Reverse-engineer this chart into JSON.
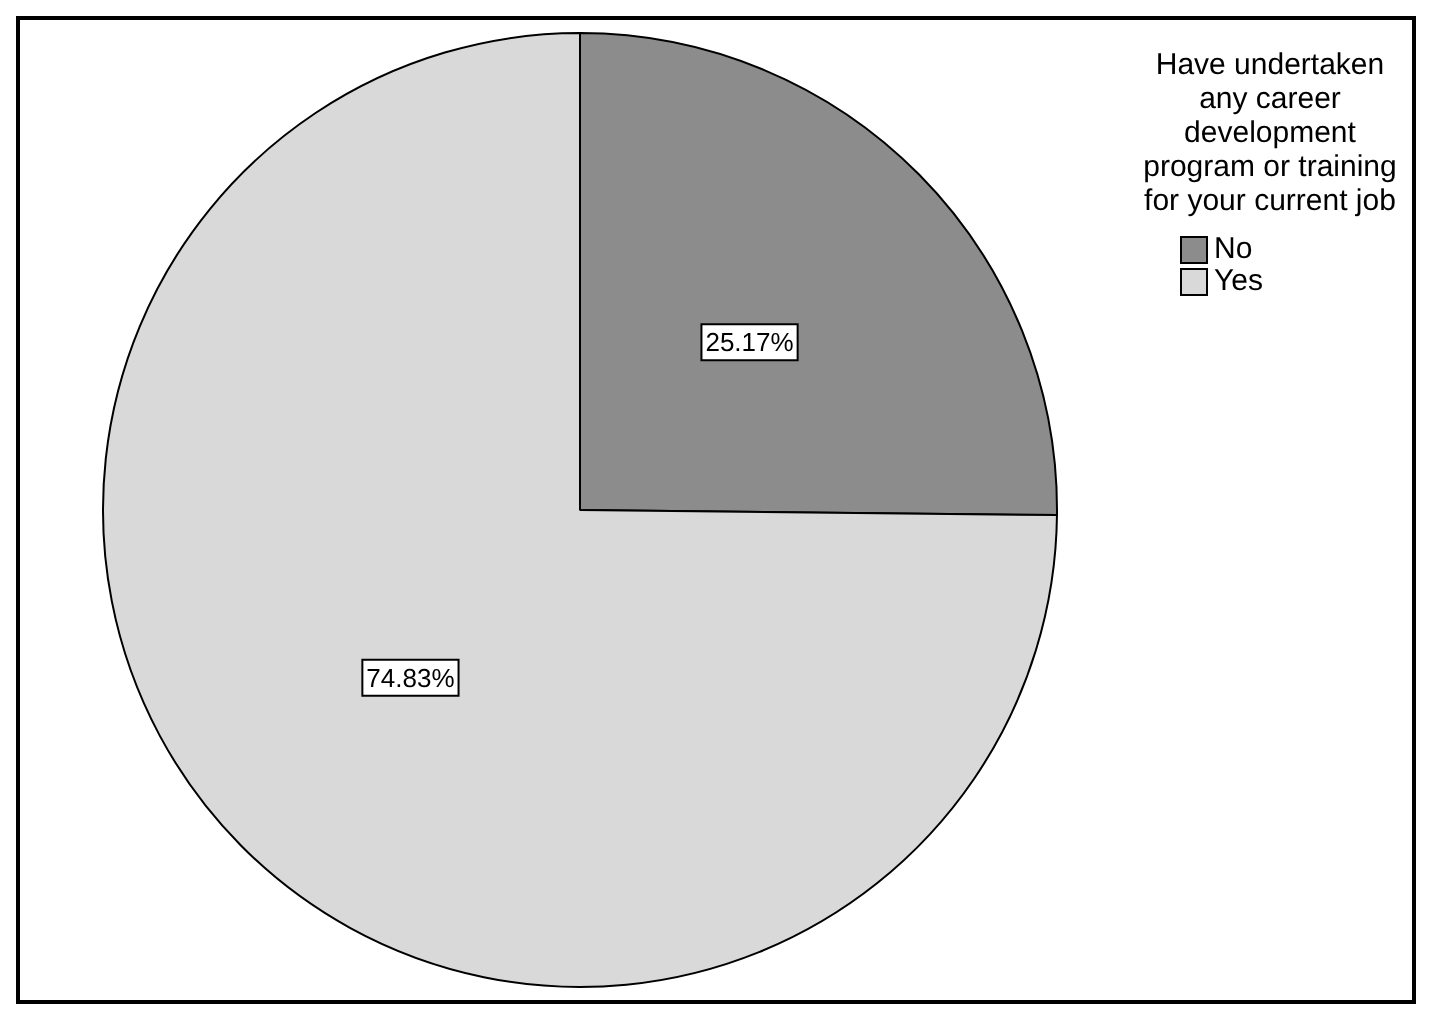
{
  "chart_data": {
    "type": "pie",
    "legend_title": "Have undertaken any career development program or training for your current job",
    "categories": [
      "No",
      "Yes"
    ],
    "values": [
      25.17,
      74.83
    ],
    "value_labels": [
      "25.17%",
      "74.83%"
    ],
    "colors": [
      "#8c8c8c",
      "#d9d9d9"
    ],
    "legend": "right"
  }
}
